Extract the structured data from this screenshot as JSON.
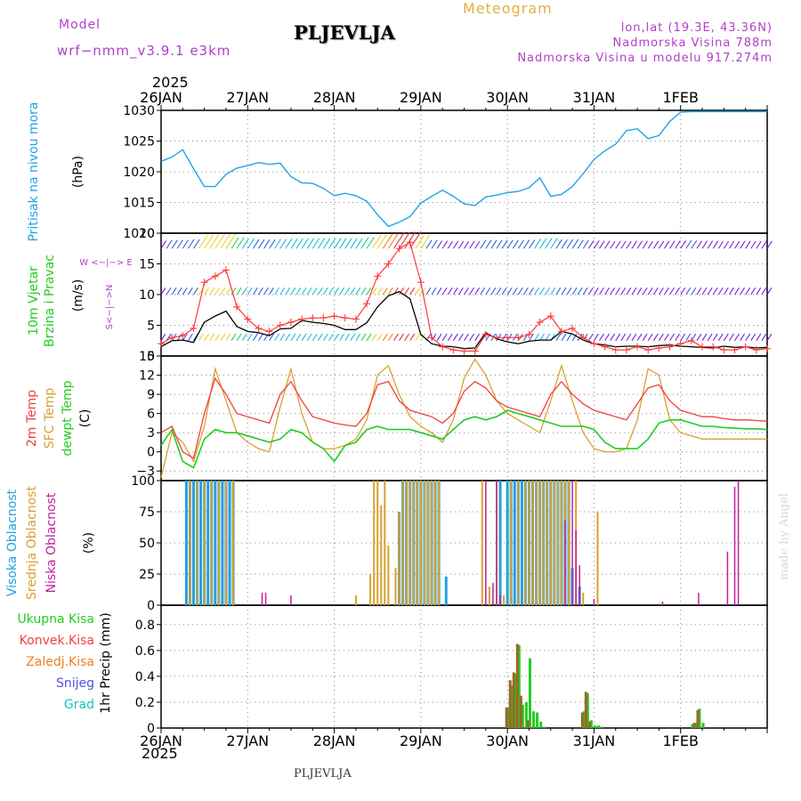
{
  "header": {
    "model_label": "Model",
    "model_name": "wrf−nmm_v3.9.1  e3km",
    "station": "PLJEVLJA",
    "meteogram": "Meteogram",
    "lonlat": "lon,lat (19.3E, 43.36N)",
    "altitude": "Nadmorska Visina 788m",
    "model_altitude": "Nadmorska Visina u modelu 917.274m",
    "footer_station": "PLJEVLJA",
    "credit": "made by Angel",
    "year": "2025"
  },
  "colors": {
    "pressure": "#1fa3e8",
    "wind_obs": "#ff3b3b",
    "wind_speed": "#000000",
    "t2m": "#f04040",
    "tsfc": "#d9a030",
    "dewpt": "#22cc22",
    "high_cloud": "#22a0e0",
    "mid_cloud": "#d8a030",
    "low_cloud": "#c020a0",
    "total_precip": "#22cc22",
    "conv_precip": "#a06428"
  },
  "chart_data": [
    {
      "type": "line",
      "panel": "pressure",
      "title": "Pritisak na nivou mora",
      "ylabel": "(hPa)",
      "ylim": [
        1010,
        1030
      ],
      "yticks": [
        1010,
        1015,
        1020,
        1025,
        1030
      ],
      "ytick_labels": [
        "1010",
        "1015",
        "1020",
        "1025",
        "1030"
      ],
      "x_hours": [
        0,
        3,
        6,
        9,
        12,
        15,
        18,
        21,
        24,
        27,
        30,
        33,
        36,
        39,
        42,
        45,
        48,
        51,
        54,
        57,
        60,
        63,
        66,
        69,
        72,
        75,
        78,
        81,
        84,
        87,
        90,
        93,
        96,
        99,
        102,
        105,
        108,
        111,
        114,
        117,
        120,
        123,
        126,
        129,
        132,
        135,
        138,
        141,
        144,
        147,
        150,
        153,
        156,
        159,
        162,
        165,
        168
      ],
      "series": [
        {
          "name": "MSLP",
          "values": [
            1021.7,
            1022.4,
            1023.6,
            1020.5,
            1017.6,
            1017.6,
            1019.6,
            1020.6,
            1021.0,
            1021.5,
            1021.2,
            1021.4,
            1019.2,
            1018.2,
            1018.1,
            1017.3,
            1016.1,
            1016.5,
            1016.1,
            1015.2,
            1013.0,
            1011.1,
            1011.8,
            1012.7,
            1014.9,
            1016.0,
            1017.0,
            1016.0,
            1014.8,
            1014.5,
            1015.9,
            1016.2,
            1016.6,
            1016.8,
            1017.4,
            1019.0,
            1016.0,
            1016.3,
            1017.6,
            1019.7,
            1022.0,
            1023.4,
            1024.5,
            1026.7,
            1027.0,
            1025.4,
            1025.9,
            1028.2,
            1029.7,
            1029.8,
            1029.8,
            1029.8,
            1029.8,
            1029.8,
            1029.8,
            1029.8,
            1029.8
          ]
        }
      ]
    },
    {
      "type": "line",
      "panel": "wind",
      "title": "10m Vjetar",
      "subtitle": "Brzina i Pravac",
      "ylabel": "(m/s)",
      "ylim": [
        0,
        20
      ],
      "yticks": [
        0,
        5,
        10,
        15,
        20
      ],
      "ytick_labels": [
        "0",
        "5",
        "10",
        "15",
        "20"
      ],
      "compass": "W <−|−> E",
      "compass_vertical": "S<−|−>N",
      "x_hours": [
        0,
        3,
        6,
        9,
        12,
        15,
        18,
        21,
        24,
        27,
        30,
        33,
        36,
        39,
        42,
        45,
        48,
        51,
        54,
        57,
        60,
        63,
        66,
        69,
        72,
        75,
        78,
        81,
        84,
        87,
        90,
        93,
        96,
        99,
        102,
        105,
        108,
        111,
        114,
        117,
        120,
        123,
        126,
        129,
        132,
        135,
        138,
        141,
        144,
        147,
        150,
        153,
        156,
        159,
        162,
        165,
        168
      ],
      "series": [
        {
          "name": "mean wind speed",
          "values": [
            1.5,
            2.5,
            2.6,
            2.2,
            5.5,
            6.5,
            7.3,
            4.8,
            4.0,
            3.8,
            3.3,
            4.4,
            4.5,
            5.8,
            5.5,
            5.3,
            5.0,
            4.3,
            4.3,
            5.4,
            8.0,
            9.8,
            10.5,
            9.3,
            3.5,
            2.0,
            1.6,
            1.5,
            1.2,
            1.3,
            3.8,
            2.8,
            2.3,
            2.0,
            2.4,
            2.6,
            2.6,
            4.0,
            3.6,
            2.6,
            2.0,
            1.8,
            1.5,
            1.6,
            1.6,
            1.5,
            1.7,
            1.8,
            1.6,
            1.5,
            1.4,
            1.3,
            1.6,
            1.4,
            1.5,
            1.3,
            1.4
          ]
        },
        {
          "name": "gust",
          "values": [
            2.0,
            3.0,
            3.3,
            4.5,
            12.0,
            13.0,
            14.0,
            8.0,
            6.0,
            4.5,
            4.0,
            5.0,
            5.5,
            6.0,
            6.2,
            6.2,
            6.5,
            6.2,
            6.0,
            8.5,
            13.0,
            15.0,
            17.5,
            18.5,
            12.0,
            3.0,
            1.5,
            1.0,
            0.8,
            0.8,
            3.5,
            3.0,
            3.0,
            3.0,
            3.5,
            5.5,
            6.5,
            4.0,
            4.5,
            3.0,
            2.0,
            1.5,
            1.0,
            1.0,
            1.5,
            1.0,
            1.3,
            1.5,
            2.0,
            2.5,
            1.5,
            1.5,
            1.0,
            1.0,
            1.5,
            1.0,
            1.2
          ]
        }
      ]
    },
    {
      "type": "line",
      "panel": "temperature",
      "title": "2m Temp",
      "subtitle": "SFC Temp",
      "subtitle2": "dewpt Temp",
      "ylabel": "(C)",
      "ylim": [
        -4.5,
        15
      ],
      "yticks": [
        -3,
        0,
        3,
        6,
        9,
        12,
        15
      ],
      "ytick_labels": [
        "−3",
        "0",
        "3",
        "6",
        "9",
        "12",
        "15"
      ],
      "x_hours": [
        0,
        3,
        6,
        9,
        12,
        15,
        18,
        21,
        24,
        27,
        30,
        33,
        36,
        39,
        42,
        45,
        48,
        51,
        54,
        57,
        60,
        63,
        66,
        69,
        72,
        75,
        78,
        81,
        84,
        87,
        90,
        93,
        96,
        99,
        102,
        105,
        108,
        111,
        114,
        117,
        120,
        123,
        126,
        129,
        132,
        135,
        138,
        141,
        144,
        147,
        150,
        153,
        156,
        159,
        162,
        165,
        168
      ],
      "series": [
        {
          "name": "2m Temp",
          "values": [
            3.0,
            4.0,
            0.0,
            -1.0,
            6.0,
            11.5,
            9.0,
            6.0,
            5.5,
            5.0,
            4.5,
            9.0,
            11.0,
            8.0,
            5.5,
            5.0,
            4.5,
            4.2,
            4.0,
            6.0,
            10.5,
            11.0,
            8.0,
            6.5,
            6.0,
            5.5,
            4.5,
            6.0,
            9.5,
            11.0,
            10.0,
            8.0,
            7.0,
            6.5,
            6.0,
            5.5,
            9.0,
            11.0,
            9.0,
            7.5,
            6.5,
            6.0,
            5.5,
            5.0,
            7.5,
            10.0,
            10.5,
            8.0,
            6.5,
            6.0,
            5.5,
            5.5,
            5.2,
            5.0,
            5.0,
            4.9,
            4.8
          ]
        },
        {
          "name": "SFC Temp",
          "values": [
            -4.0,
            3.0,
            1.5,
            -1.5,
            4.0,
            13.0,
            8.0,
            3.0,
            1.5,
            0.5,
            0.0,
            7.0,
            13.0,
            6.0,
            1.5,
            0.5,
            0.5,
            1.0,
            2.0,
            5.0,
            12.0,
            13.5,
            9.0,
            5.5,
            4.0,
            3.0,
            1.5,
            5.0,
            11.5,
            14.5,
            12.0,
            8.0,
            6.0,
            5.0,
            4.0,
            3.0,
            8.0,
            13.5,
            8.0,
            3.0,
            0.5,
            0.0,
            0.0,
            0.5,
            5.0,
            13.0,
            12.0,
            5.0,
            3.0,
            2.5,
            2.0,
            2.0,
            2.0,
            2.0,
            2.0,
            2.0,
            2.0
          ]
        },
        {
          "name": "dewpt Temp",
          "values": [
            1.0,
            3.5,
            -1.5,
            -2.5,
            2.0,
            3.5,
            3.0,
            3.0,
            2.5,
            2.0,
            1.5,
            2.0,
            3.5,
            3.0,
            1.5,
            0.5,
            -1.5,
            1.0,
            1.5,
            3.5,
            4.0,
            3.5,
            3.5,
            3.5,
            3.0,
            2.5,
            2.0,
            3.5,
            5.0,
            5.5,
            5.0,
            5.5,
            6.5,
            6.0,
            5.5,
            5.0,
            4.5,
            4.0,
            4.0,
            4.0,
            3.5,
            1.5,
            0.5,
            0.5,
            0.5,
            2.0,
            4.5,
            5.0,
            5.0,
            4.5,
            4.0,
            4.0,
            3.8,
            3.7,
            3.6,
            3.6,
            3.5
          ]
        }
      ]
    },
    {
      "type": "bar",
      "panel": "clouds",
      "title": "Visoka Oblacnost",
      "subtitle": "Srednja Oblacnost",
      "subtitle2": "Niska Oblacnost",
      "ylabel": "(%)",
      "ylim": [
        0,
        100
      ],
      "yticks": [
        0,
        25,
        50,
        75,
        100
      ],
      "ytick_labels": [
        "0",
        "25",
        "50",
        "75",
        "100"
      ],
      "series": [
        {
          "name": "Visoka Oblacnost",
          "hours": [
            7,
            8,
            9,
            10,
            11,
            12,
            13,
            14,
            15,
            16,
            17,
            18,
            19,
            20,
            66,
            67,
            68,
            69,
            70,
            71,
            72,
            73,
            74,
            75,
            76,
            77,
            79,
            94,
            96,
            97,
            98,
            99,
            100,
            101,
            102,
            103,
            104,
            105,
            106,
            107,
            108,
            109,
            110,
            111,
            112,
            113,
            114,
            116
          ],
          "values": [
            100,
            100,
            100,
            100,
            100,
            100,
            100,
            100,
            100,
            100,
            100,
            100,
            100,
            100,
            75,
            100,
            100,
            100,
            100,
            100,
            100,
            100,
            100,
            100,
            100,
            100,
            23,
            100,
            100,
            100,
            100,
            100,
            100,
            100,
            100,
            100,
            100,
            100,
            100,
            100,
            100,
            100,
            100,
            100,
            100,
            100,
            30,
            15
          ]
        },
        {
          "name": "Srednja Oblacnost",
          "hours": [
            8,
            10,
            12,
            14,
            16,
            18,
            20,
            54,
            58,
            59,
            60,
            61,
            62,
            63,
            65,
            66,
            67,
            68,
            69,
            70,
            71,
            72,
            73,
            74,
            75,
            76,
            77,
            89,
            91,
            93,
            95,
            97,
            99,
            101,
            102,
            103,
            104,
            105,
            106,
            107,
            108,
            109,
            110,
            111,
            112,
            113,
            115,
            117,
            121
          ],
          "values": [
            100,
            100,
            100,
            100,
            100,
            100,
            100,
            8,
            25,
            100,
            100,
            80,
            100,
            48,
            30,
            75,
            100,
            100,
            100,
            100,
            100,
            100,
            100,
            100,
            100,
            100,
            100,
            100,
            15,
            100,
            8,
            100,
            100,
            100,
            100,
            100,
            100,
            100,
            100,
            100,
            100,
            100,
            100,
            100,
            100,
            100,
            100,
            10,
            75
          ]
        },
        {
          "name": "Niska Oblacnost",
          "hours": [
            28,
            29,
            36,
            90,
            92,
            93,
            94,
            112,
            114,
            115,
            116,
            120,
            139,
            149,
            157,
            159,
            160
          ],
          "values": [
            10,
            10,
            8,
            100,
            18,
            100,
            8,
            68,
            100,
            60,
            32,
            5,
            3,
            10,
            43,
            95,
            100
          ]
        }
      ]
    },
    {
      "type": "bar",
      "panel": "precip",
      "title": "1hr Precip (mm)",
      "ylabel": "1hr Precip (mm)",
      "ylim": [
        0,
        0.95
      ],
      "yticks": [
        0,
        0.2,
        0.4,
        0.6,
        0.8
      ],
      "ytick_labels": [
        "0",
        "0.2",
        "0.4",
        "0.6",
        "0.8"
      ],
      "legend": [
        "Ukupna Kisa",
        "Konvek.Kisa",
        "Zaledj.Kisa",
        "Snijeg",
        "Grad"
      ],
      "series": [
        {
          "name": "Ukupna Kisa",
          "hours": [
            96,
            97,
            98,
            99,
            100,
            101,
            102,
            103,
            104,
            105,
            106,
            117,
            118,
            119,
            120,
            121,
            122,
            147,
            148,
            149,
            150
          ],
          "values": [
            0.16,
            0.33,
            0.42,
            0.64,
            0.18,
            0.2,
            0.54,
            0.13,
            0.12,
            0.05,
            0.01,
            0.13,
            0.27,
            0.06,
            0.02,
            0.02,
            0.01,
            0.03,
            0.04,
            0.15,
            0.04
          ]
        },
        {
          "name": "Konvek.Kisa",
          "hours": [
            96,
            97,
            98,
            99,
            100,
            102,
            117,
            118,
            119,
            148,
            149
          ],
          "values": [
            0.16,
            0.37,
            0.43,
            0.65,
            0.25,
            0.06,
            0.12,
            0.28,
            0.05,
            0.04,
            0.14
          ]
        }
      ]
    }
  ],
  "axis": {
    "start_label": "26JAN",
    "days": [
      "26JAN",
      "27JAN",
      "28JAN",
      "29JAN",
      "30JAN",
      "31JAN",
      "1FEB"
    ],
    "total_hours": 168
  }
}
